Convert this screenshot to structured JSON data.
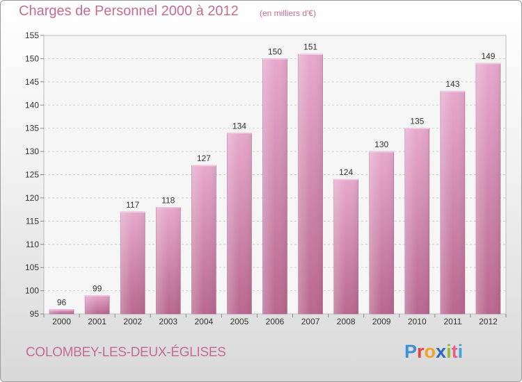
{
  "header": {
    "title": "Charges de Personnel 2000 à 2012",
    "subtitle": "(en milliers d'€)"
  },
  "footer": {
    "city": "COLOMBEY-LES-DEUX-ÉGLISES",
    "logo_letters": [
      "P",
      "r",
      "o",
      "x",
      "i",
      "t",
      "i"
    ],
    "logo_colors": [
      "#3b8fd6",
      "#e8423f",
      "#f2a22c",
      "#2a66c4",
      "#8fbf2a",
      "#e85c8a",
      "#3aa6d8"
    ]
  },
  "chart_data": {
    "type": "bar",
    "title": "Charges de Personnel 2000 à 2012",
    "subtitle": "(en milliers d'€)",
    "categories": [
      "2000",
      "2001",
      "2002",
      "2003",
      "2004",
      "2005",
      "2006",
      "2007",
      "2008",
      "2009",
      "2010",
      "2011",
      "2012"
    ],
    "values": [
      96,
      99,
      117,
      118,
      127,
      134,
      150,
      151,
      124,
      130,
      135,
      143,
      149
    ],
    "ylim": [
      95,
      155
    ],
    "yticks": [
      95,
      100,
      105,
      110,
      115,
      120,
      125,
      130,
      135,
      140,
      145,
      150,
      155
    ],
    "grid": true,
    "bar_color": "#d58fb6",
    "legend": "none"
  }
}
